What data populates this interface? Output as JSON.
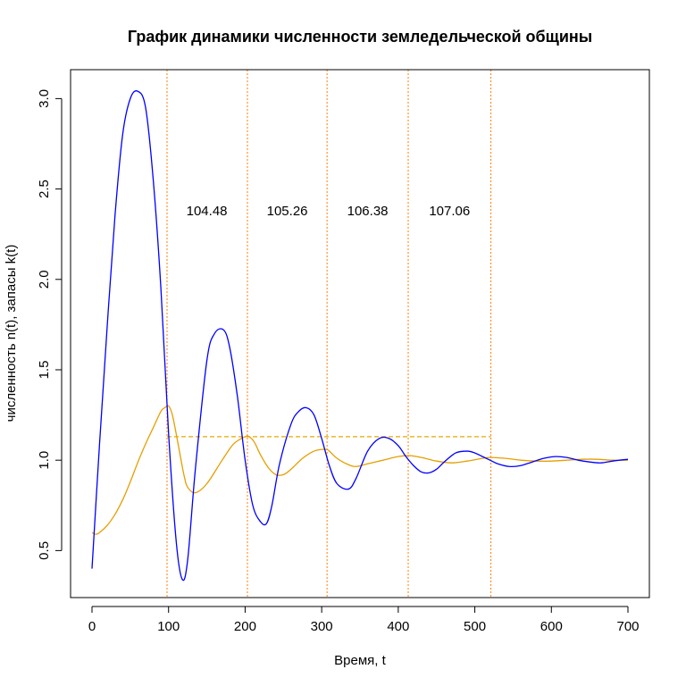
{
  "chart_data": {
    "type": "line",
    "title": "График динамики численности земледельческой общины",
    "xlabel": "Время, t",
    "ylabel": "численность n(t), запасы k(t)",
    "xlim": [
      -28,
      728
    ],
    "ylim": [
      0.24,
      3.16
    ],
    "x_ticks": [
      0,
      100,
      200,
      300,
      400,
      500,
      600,
      700
    ],
    "y_ticks": [
      0.5,
      1.0,
      1.5,
      2.0,
      2.5,
      3.0
    ],
    "y_tick_labels": [
      "0.5",
      "1.0",
      "1.5",
      "2.0",
      "2.5",
      "3.0"
    ],
    "colors": {
      "population": "#0000ff",
      "reserves": "#e69f00",
      "vline": "#ff7f00",
      "hline": "#e6a800"
    },
    "series": [
      {
        "key": "population",
        "x": [
          0,
          10,
          20,
          30,
          40,
          50,
          60,
          70,
          80,
          90,
          100,
          110,
          118,
          125,
          135,
          150,
          160,
          172,
          180,
          190,
          200,
          210,
          220,
          228,
          235,
          245,
          260,
          270,
          280,
          290,
          300,
          310,
          320,
          335,
          345,
          360,
          375,
          388,
          400,
          410,
          420,
          430,
          440,
          450,
          460,
          475,
          490,
          500,
          510,
          520,
          530,
          545,
          560,
          575,
          590,
          605,
          620,
          635,
          650,
          665,
          680,
          700
        ],
        "y": [
          0.4,
          1.1,
          1.75,
          2.35,
          2.8,
          3.0,
          3.04,
          2.95,
          2.55,
          1.95,
          1.15,
          0.55,
          0.34,
          0.45,
          0.95,
          1.55,
          1.7,
          1.72,
          1.62,
          1.35,
          1.0,
          0.75,
          0.66,
          0.65,
          0.75,
          0.98,
          1.2,
          1.27,
          1.29,
          1.25,
          1.12,
          0.97,
          0.87,
          0.84,
          0.9,
          1.05,
          1.12,
          1.12,
          1.08,
          1.02,
          0.97,
          0.935,
          0.93,
          0.95,
          0.99,
          1.04,
          1.05,
          1.04,
          1.02,
          1.0,
          0.98,
          0.965,
          0.97,
          0.99,
          1.01,
          1.02,
          1.015,
          1.0,
          0.99,
          0.985,
          0.995,
          1.005
        ]
      },
      {
        "key": "reserves",
        "x": [
          0,
          5,
          10,
          20,
          30,
          40,
          50,
          60,
          70,
          80,
          90,
          95,
          100,
          105,
          112,
          120,
          125,
          135,
          150,
          170,
          185,
          200,
          205,
          212,
          220,
          230,
          240,
          250,
          260,
          275,
          290,
          305,
          310,
          320,
          335,
          345,
          360,
          380,
          400,
          415,
          430,
          450,
          470,
          490,
          510,
          520,
          540,
          560,
          580,
          600,
          620,
          640,
          660,
          680,
          700
        ],
        "y": [
          0.6,
          0.59,
          0.6,
          0.64,
          0.7,
          0.78,
          0.88,
          0.99,
          1.09,
          1.18,
          1.27,
          1.29,
          1.3,
          1.25,
          1.1,
          0.92,
          0.85,
          0.82,
          0.87,
          1.0,
          1.09,
          1.13,
          1.13,
          1.1,
          1.03,
          0.96,
          0.92,
          0.92,
          0.95,
          1.01,
          1.05,
          1.06,
          1.05,
          1.01,
          0.975,
          0.965,
          0.98,
          1.0,
          1.02,
          1.025,
          1.015,
          0.995,
          0.985,
          0.995,
          1.01,
          1.015,
          1.01,
          1.0,
          0.995,
          0.995,
          1.0,
          1.005,
          1.005,
          1.0,
          1.0
        ]
      }
    ],
    "vlines": [
      98,
      203,
      307,
      413,
      521
    ],
    "hline": {
      "y": 1.13,
      "x_start": 98,
      "x_end": 521
    },
    "annotations": [
      {
        "text": "104.48",
        "x": 150,
        "y": 2.38
      },
      {
        "text": "105.26",
        "x": 255,
        "y": 2.38
      },
      {
        "text": "106.38",
        "x": 360,
        "y": 2.38
      },
      {
        "text": "107.06",
        "x": 467,
        "y": 2.38
      }
    ]
  }
}
